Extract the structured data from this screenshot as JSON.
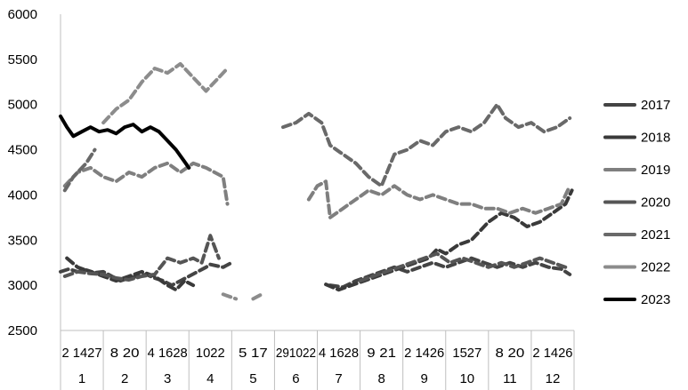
{
  "chart_data": {
    "type": "line",
    "title": "",
    "xlabel": "",
    "ylabel": "",
    "ylim": [
      2500,
      6000
    ],
    "yticks": [
      "6000",
      "5500",
      "5000",
      "4500",
      "4000",
      "3500",
      "3000",
      "2500"
    ],
    "grid": false,
    "legend_position": "right",
    "x_range": [
      0,
      12
    ],
    "x_month_labels": [
      "1",
      "2",
      "3",
      "4",
      "5",
      "6",
      "7",
      "8",
      "9",
      "10",
      "11",
      "12"
    ],
    "x_day_labels": [
      {
        "month": "1",
        "days": "2 1427"
      },
      {
        "month": "2",
        "days": "8 20"
      },
      {
        "month": "3",
        "days": "4 1628"
      },
      {
        "month": "4",
        "days": "1022"
      },
      {
        "month": "5",
        "days": "5 17"
      },
      {
        "month": "6",
        "days": "291022"
      },
      {
        "month": "7",
        "days": "4 1628"
      },
      {
        "month": "8",
        "days": "9 21"
      },
      {
        "month": "9",
        "days": "2 1426"
      },
      {
        "month": "10",
        "days": "1527"
      },
      {
        "month": "11",
        "days": "8 20"
      },
      {
        "month": "12",
        "days": "2 1426"
      }
    ],
    "series": [
      {
        "name": "2017",
        "color": "#444444",
        "dash": true,
        "points": [
          [
            0.0,
            3150
          ],
          [
            0.2,
            3180
          ],
          [
            0.4,
            3150
          ],
          [
            0.6,
            3170
          ],
          [
            0.8,
            3140
          ],
          [
            1.0,
            3150
          ],
          [
            1.2,
            3100
          ],
          [
            1.4,
            3050
          ],
          [
            1.6,
            3080
          ],
          [
            1.8,
            3100
          ],
          [
            2.0,
            3120
          ],
          [
            2.2,
            3080
          ],
          [
            2.4,
            3050
          ],
          [
            2.6,
            3000
          ],
          [
            2.8,
            3050
          ],
          [
            3.0,
            3100
          ],
          [
            3.2,
            3150
          ],
          [
            3.4,
            3200
          ],
          [
            3.5,
            3230
          ],
          [
            3.8,
            3200
          ],
          [
            4.0,
            3250
          ],
          null,
          [
            6.3,
            3000
          ],
          [
            6.6,
            2980
          ],
          [
            6.9,
            3050
          ],
          [
            7.2,
            3100
          ],
          [
            7.5,
            3150
          ],
          [
            7.8,
            3200
          ],
          [
            8.1,
            3150
          ],
          [
            8.4,
            3200
          ],
          [
            8.7,
            3250
          ],
          [
            9.0,
            3200
          ],
          [
            9.3,
            3250
          ],
          [
            9.6,
            3300
          ],
          [
            9.9,
            3250
          ],
          [
            10.2,
            3200
          ],
          [
            10.5,
            3250
          ],
          [
            10.8,
            3200
          ],
          [
            11.1,
            3250
          ],
          [
            11.4,
            3200
          ],
          [
            11.7,
            3180
          ],
          [
            11.9,
            3120
          ]
        ]
      },
      {
        "name": "2018",
        "color": "#3a3a3a",
        "dash": true,
        "points": [
          [
            0.15,
            3300
          ],
          [
            0.4,
            3200
          ],
          [
            0.7,
            3150
          ],
          [
            1.0,
            3100
          ],
          [
            1.3,
            3050
          ],
          [
            1.6,
            3100
          ],
          [
            1.9,
            3150
          ],
          [
            2.2,
            3100
          ],
          [
            2.5,
            3000
          ],
          [
            2.7,
            2950
          ],
          [
            2.9,
            3050
          ],
          [
            3.1,
            3000
          ],
          null,
          [
            6.2,
            3010
          ],
          [
            6.5,
            2950
          ],
          [
            6.8,
            3000
          ],
          [
            7.1,
            3050
          ],
          [
            7.4,
            3100
          ],
          [
            7.7,
            3150
          ],
          [
            8.0,
            3200
          ],
          [
            8.3,
            3250
          ],
          [
            8.6,
            3300
          ],
          [
            8.8,
            3400
          ],
          [
            9.0,
            3350
          ],
          [
            9.3,
            3450
          ],
          [
            9.6,
            3500
          ],
          [
            9.8,
            3600
          ],
          [
            10.0,
            3700
          ],
          [
            10.3,
            3800
          ],
          [
            10.6,
            3750
          ],
          [
            10.9,
            3650
          ],
          [
            11.2,
            3700
          ],
          [
            11.5,
            3800
          ],
          [
            11.8,
            3900
          ],
          [
            11.95,
            4050
          ]
        ]
      },
      {
        "name": "2019",
        "color": "#7f7f7f",
        "dash": true,
        "points": [
          [
            0.1,
            4100
          ],
          [
            0.4,
            4250
          ],
          [
            0.7,
            4300
          ],
          [
            1.0,
            4200
          ],
          [
            1.3,
            4150
          ],
          [
            1.6,
            4250
          ],
          [
            1.9,
            4200
          ],
          [
            2.2,
            4300
          ],
          [
            2.5,
            4350
          ],
          [
            2.8,
            4250
          ],
          [
            3.1,
            4350
          ],
          [
            3.4,
            4300
          ],
          [
            3.6,
            4250
          ],
          [
            3.8,
            4200
          ],
          [
            3.9,
            3900
          ],
          null,
          [
            5.8,
            3950
          ],
          [
            6.0,
            4100
          ],
          [
            6.2,
            4150
          ],
          [
            6.3,
            3750
          ],
          [
            6.6,
            3850
          ],
          [
            6.9,
            3950
          ],
          [
            7.2,
            4050
          ],
          [
            7.5,
            4000
          ],
          [
            7.8,
            4100
          ],
          [
            8.1,
            4000
          ],
          [
            8.4,
            3950
          ],
          [
            8.7,
            4000
          ],
          [
            9.0,
            3950
          ],
          [
            9.3,
            3900
          ],
          [
            9.6,
            3900
          ],
          [
            9.9,
            3850
          ],
          [
            10.2,
            3850
          ],
          [
            10.5,
            3800
          ],
          [
            10.8,
            3850
          ],
          [
            11.1,
            3800
          ],
          [
            11.4,
            3850
          ],
          [
            11.7,
            3900
          ],
          [
            11.9,
            4100
          ]
        ]
      },
      {
        "name": "2020",
        "color": "#555555",
        "dash": true,
        "points": [
          [
            0.1,
            3100
          ],
          [
            0.4,
            3150
          ],
          [
            0.7,
            3130
          ],
          [
            1.0,
            3120
          ],
          [
            1.3,
            3080
          ],
          [
            1.6,
            3060
          ],
          [
            1.9,
            3100
          ],
          [
            2.2,
            3120
          ],
          [
            2.5,
            3300
          ],
          [
            2.8,
            3250
          ],
          [
            3.1,
            3300
          ],
          [
            3.3,
            3250
          ],
          [
            3.5,
            3550
          ],
          [
            3.7,
            3300
          ],
          null,
          [
            7.0,
            3050
          ],
          [
            7.3,
            3100
          ],
          [
            7.6,
            3150
          ],
          [
            7.9,
            3200
          ],
          [
            8.2,
            3250
          ],
          [
            8.5,
            3300
          ],
          [
            8.8,
            3350
          ],
          [
            9.1,
            3250
          ],
          [
            9.4,
            3300
          ],
          [
            9.7,
            3250
          ],
          [
            10.0,
            3200
          ],
          [
            10.3,
            3250
          ],
          [
            10.6,
            3200
          ],
          [
            10.9,
            3250
          ],
          [
            11.2,
            3300
          ],
          [
            11.5,
            3250
          ],
          [
            11.8,
            3200
          ]
        ]
      },
      {
        "name": "2021",
        "color": "#696969",
        "dash": true,
        "points": [
          [
            0.1,
            4050
          ],
          [
            0.3,
            4200
          ],
          [
            0.6,
            4350
          ],
          [
            0.8,
            4500
          ],
          null,
          [
            5.2,
            4750
          ],
          [
            5.5,
            4800
          ],
          [
            5.8,
            4900
          ],
          [
            6.1,
            4800
          ],
          [
            6.3,
            4550
          ],
          [
            6.6,
            4450
          ],
          [
            6.9,
            4350
          ],
          [
            7.2,
            4200
          ],
          [
            7.5,
            4100
          ],
          [
            7.8,
            4450
          ],
          [
            8.1,
            4500
          ],
          [
            8.4,
            4600
          ],
          [
            8.7,
            4550
          ],
          [
            9.0,
            4700
          ],
          [
            9.3,
            4750
          ],
          [
            9.6,
            4700
          ],
          [
            9.9,
            4800
          ],
          [
            10.2,
            5000
          ],
          [
            10.4,
            4850
          ],
          [
            10.7,
            4750
          ],
          [
            11.0,
            4800
          ],
          [
            11.3,
            4700
          ],
          [
            11.6,
            4750
          ],
          [
            11.9,
            4850
          ]
        ]
      },
      {
        "name": "2022",
        "color": "#8c8c8c",
        "dash": true,
        "points": [
          [
            1.0,
            4800
          ],
          [
            1.3,
            4950
          ],
          [
            1.6,
            5050
          ],
          [
            1.9,
            5250
          ],
          [
            2.2,
            5400
          ],
          [
            2.5,
            5350
          ],
          [
            2.8,
            5450
          ],
          [
            3.1,
            5300
          ],
          [
            3.4,
            5150
          ],
          [
            3.7,
            5300
          ],
          [
            3.9,
            5400
          ],
          null,
          [
            3.8,
            2900
          ],
          [
            4.1,
            2850
          ],
          null,
          [
            4.5,
            2850
          ],
          [
            4.7,
            2900
          ]
        ]
      },
      {
        "name": "2023",
        "color": "#000000",
        "dash": false,
        "points": [
          [
            0.0,
            4870
          ],
          [
            0.15,
            4750
          ],
          [
            0.3,
            4650
          ],
          [
            0.5,
            4700
          ],
          [
            0.7,
            4750
          ],
          [
            0.9,
            4700
          ],
          [
            1.1,
            4720
          ],
          [
            1.3,
            4680
          ],
          [
            1.5,
            4750
          ],
          [
            1.7,
            4780
          ],
          [
            1.9,
            4700
          ],
          [
            2.1,
            4750
          ],
          [
            2.3,
            4700
          ],
          [
            2.5,
            4600
          ],
          [
            2.7,
            4500
          ],
          [
            2.85,
            4400
          ],
          [
            3.0,
            4300
          ]
        ]
      }
    ]
  }
}
